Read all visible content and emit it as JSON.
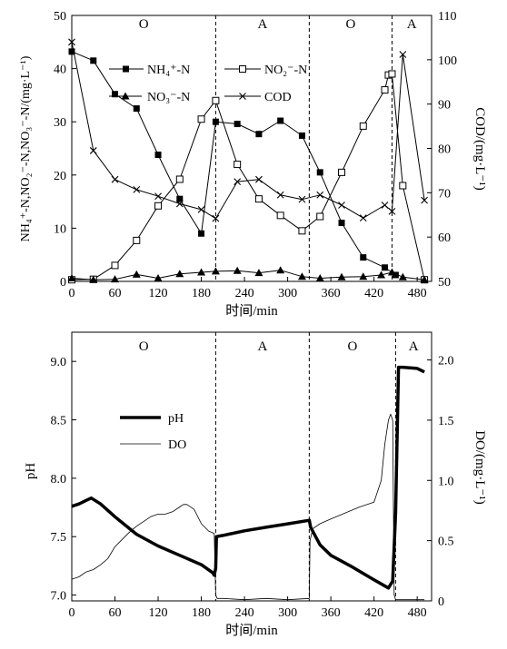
{
  "chart_data": [
    {
      "type": "line",
      "xlabel": "时间/min",
      "ylabel": "NH₄⁺-N,NO₂⁻-N,NO₃⁻-N/(mg·L⁻¹)",
      "y2label": "COD/(mg·L⁻¹)",
      "xlim": [
        0,
        500
      ],
      "ylim": [
        0,
        50
      ],
      "y2lim": [
        50,
        110
      ],
      "xticks": [
        "0",
        "60",
        "120",
        "180",
        "240",
        "300",
        "360",
        "420",
        "480"
      ],
      "yticks": [
        "0",
        "10",
        "20",
        "30",
        "40",
        "50"
      ],
      "y2ticks": [
        "50",
        "60",
        "70",
        "80",
        "90",
        "100",
        "110"
      ],
      "phase_labels": [
        "O",
        "A",
        "O",
        "A"
      ],
      "phase_boundaries": [
        200,
        330,
        445
      ],
      "grid": false,
      "legend_position": "top-center",
      "series": [
        {
          "name": "NH₄⁺-N",
          "marker": "filled-square",
          "axis": "left",
          "x": [
            0,
            30,
            60,
            90,
            120,
            150,
            180,
            200,
            230,
            260,
            290,
            320,
            345,
            375,
            405,
            435,
            450
          ],
          "y": [
            43.2,
            41.5,
            35.2,
            32.5,
            23.8,
            15.5,
            9.0,
            30.0,
            29.6,
            27.7,
            30.2,
            27.4,
            20.5,
            11.0,
            4.5,
            2.6,
            1.2
          ]
        },
        {
          "name": "NO₂⁻-N",
          "marker": "open-square",
          "axis": "left",
          "x": [
            0,
            30,
            60,
            90,
            120,
            150,
            180,
            200,
            230,
            260,
            290,
            320,
            345,
            375,
            405,
            435,
            440,
            445,
            460,
            490
          ],
          "y": [
            0.3,
            0.4,
            3.0,
            7.7,
            14.2,
            19.2,
            30.5,
            34.0,
            22.0,
            15.5,
            12.4,
            9.5,
            12.2,
            20.5,
            29.2,
            36.0,
            38.8,
            39.0,
            18.0,
            0.3
          ]
        },
        {
          "name": "NO₃⁻-N",
          "marker": "filled-triangle",
          "axis": "left",
          "x": [
            0,
            30,
            60,
            90,
            120,
            150,
            180,
            200,
            230,
            260,
            290,
            320,
            345,
            375,
            405,
            430,
            445,
            460,
            490
          ],
          "y": [
            0.6,
            0.3,
            0.4,
            1.3,
            0.6,
            1.4,
            1.7,
            1.9,
            2.0,
            1.6,
            2.1,
            0.9,
            0.6,
            0.8,
            0.9,
            1.2,
            1.7,
            0.8,
            0.3
          ]
        },
        {
          "name": "COD",
          "marker": "x",
          "axis": "right",
          "x": [
            0,
            30,
            60,
            90,
            120,
            150,
            180,
            200,
            230,
            260,
            290,
            320,
            345,
            375,
            405,
            435,
            445,
            460,
            490
          ],
          "y": [
            104,
            79.5,
            73,
            70.7,
            69.2,
            67.5,
            66.2,
            64.2,
            72.5,
            73,
            69.5,
            68.5,
            69.5,
            67.2,
            64.3,
            67.2,
            65.8,
            101.2,
            68.3
          ]
        }
      ]
    },
    {
      "type": "line",
      "xlabel": "时间/min",
      "ylabel": "pH",
      "y2label": "DO/(mg·L⁻¹)",
      "xlim": [
        0,
        500
      ],
      "ylim": [
        6.95,
        9.25
      ],
      "y2lim": [
        0,
        2.23
      ],
      "xticks": [
        "0",
        "60",
        "120",
        "180",
        "240",
        "300",
        "360",
        "420",
        "480"
      ],
      "yticks": [
        "7.0",
        "7.5",
        "8.0",
        "8.5",
        "9.0"
      ],
      "y2ticks": [
        "0",
        "0.5",
        "1.0",
        "1.5",
        "2.0"
      ],
      "phase_labels": [
        "O",
        "A",
        "O",
        "A"
      ],
      "phase_boundaries": [
        200,
        330,
        450
      ],
      "grid": false,
      "legend_position": "center-left",
      "series": [
        {
          "name": "pH",
          "style": "thick",
          "axis": "left",
          "x": [
            0,
            10,
            20,
            27,
            40,
            60,
            90,
            120,
            150,
            180,
            196,
            198,
            200,
            201,
            210,
            240,
            270,
            300,
            330,
            332,
            345,
            360,
            390,
            420,
            440,
            446,
            450,
            454,
            460,
            480,
            490
          ],
          "y": [
            7.76,
            7.78,
            7.81,
            7.83,
            7.78,
            7.67,
            7.52,
            7.42,
            7.34,
            7.26,
            7.19,
            7.17,
            7.23,
            7.5,
            7.51,
            7.55,
            7.58,
            7.61,
            7.64,
            7.58,
            7.43,
            7.34,
            7.24,
            7.13,
            7.06,
            7.12,
            7.7,
            8.95,
            8.95,
            8.94,
            8.91
          ]
        },
        {
          "name": "DO",
          "style": "thin",
          "axis": "right",
          "x": [
            0,
            10,
            20,
            30,
            40,
            50,
            60,
            70,
            80,
            90,
            100,
            110,
            120,
            130,
            140,
            150,
            155,
            160,
            170,
            180,
            190,
            198,
            200,
            202,
            210,
            240,
            270,
            300,
            330,
            331,
            335,
            345,
            360,
            380,
            400,
            420,
            430,
            435,
            440,
            443,
            446,
            448,
            450,
            470,
            490
          ],
          "y": [
            0.18,
            0.2,
            0.24,
            0.26,
            0.3,
            0.35,
            0.45,
            0.51,
            0.57,
            0.62,
            0.66,
            0.7,
            0.72,
            0.72,
            0.74,
            0.78,
            0.8,
            0.8,
            0.76,
            0.64,
            0.58,
            0.56,
            0.05,
            0.02,
            0.02,
            0.01,
            0.02,
            0.01,
            0.02,
            0.5,
            0.6,
            0.64,
            0.68,
            0.73,
            0.78,
            0.82,
            1.0,
            1.3,
            1.5,
            1.55,
            1.5,
            0.05,
            0.01,
            0.01,
            0.01
          ]
        }
      ]
    }
  ]
}
